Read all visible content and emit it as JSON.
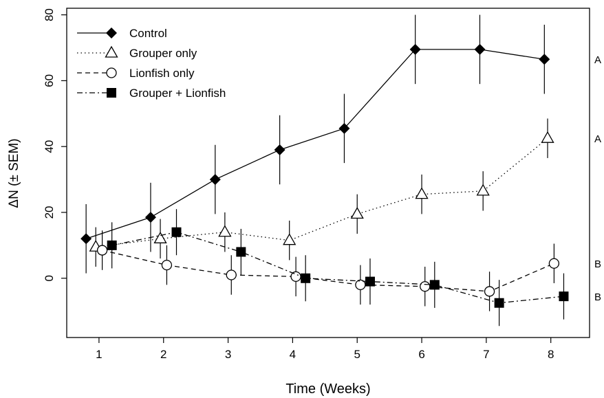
{
  "chart_data": {
    "type": "line",
    "xlabel": "Time (Weeks)",
    "ylabel": "ΔN (± SEM)",
    "xlim": [
      0.5,
      8.6
    ],
    "ylim": [
      -18,
      82
    ],
    "xticks": [
      "1",
      "2",
      "3",
      "4",
      "5",
      "6",
      "7",
      "8"
    ],
    "yticks": [
      "0",
      "20",
      "40",
      "60",
      "80"
    ],
    "legend_position": "top-left",
    "grid": false,
    "series": [
      {
        "name": "Control",
        "marker": "diamond-filled",
        "line": "solid",
        "x": [
          0.8,
          1.8,
          2.8,
          3.8,
          4.8,
          5.9,
          6.9,
          7.9
        ],
        "y": [
          12,
          18.5,
          30,
          39,
          45.5,
          69.5,
          69.5,
          66.5
        ],
        "err": [
          10.5,
          10.5,
          10.5,
          10.5,
          10.5,
          10.5,
          10.5,
          10.5
        ]
      },
      {
        "name": "Grouper only",
        "marker": "triangle-open",
        "line": "dotted",
        "x": [
          0.95,
          1.95,
          2.95,
          3.95,
          5.0,
          6.0,
          6.95,
          7.95
        ],
        "y": [
          9.5,
          12,
          14,
          11.5,
          19.5,
          25.5,
          26.5,
          42.5
        ],
        "err": [
          6,
          6,
          6,
          6,
          6,
          6,
          6,
          6
        ]
      },
      {
        "name": "Lionfish only",
        "marker": "circle-open",
        "line": "dashed",
        "x": [
          1.05,
          2.05,
          3.05,
          4.05,
          5.05,
          6.05,
          7.05,
          8.05
        ],
        "y": [
          8.5,
          4,
          1,
          0.5,
          -2,
          -2.5,
          -4,
          4.5
        ],
        "err": [
          6,
          6,
          6,
          6,
          6,
          6,
          6,
          6
        ]
      },
      {
        "name": "Grouper + Lionfish",
        "marker": "square-filled",
        "line": "dashdot",
        "x": [
          1.2,
          2.2,
          3.2,
          4.2,
          5.2,
          6.2,
          7.2,
          8.2
        ],
        "y": [
          10,
          14,
          8,
          0,
          -1,
          -2,
          -7.5,
          -5.5
        ],
        "err": [
          7,
          7,
          7,
          7,
          7,
          7,
          7,
          7
        ]
      }
    ],
    "group_labels": [
      "A",
      "A",
      "B",
      "B"
    ]
  }
}
